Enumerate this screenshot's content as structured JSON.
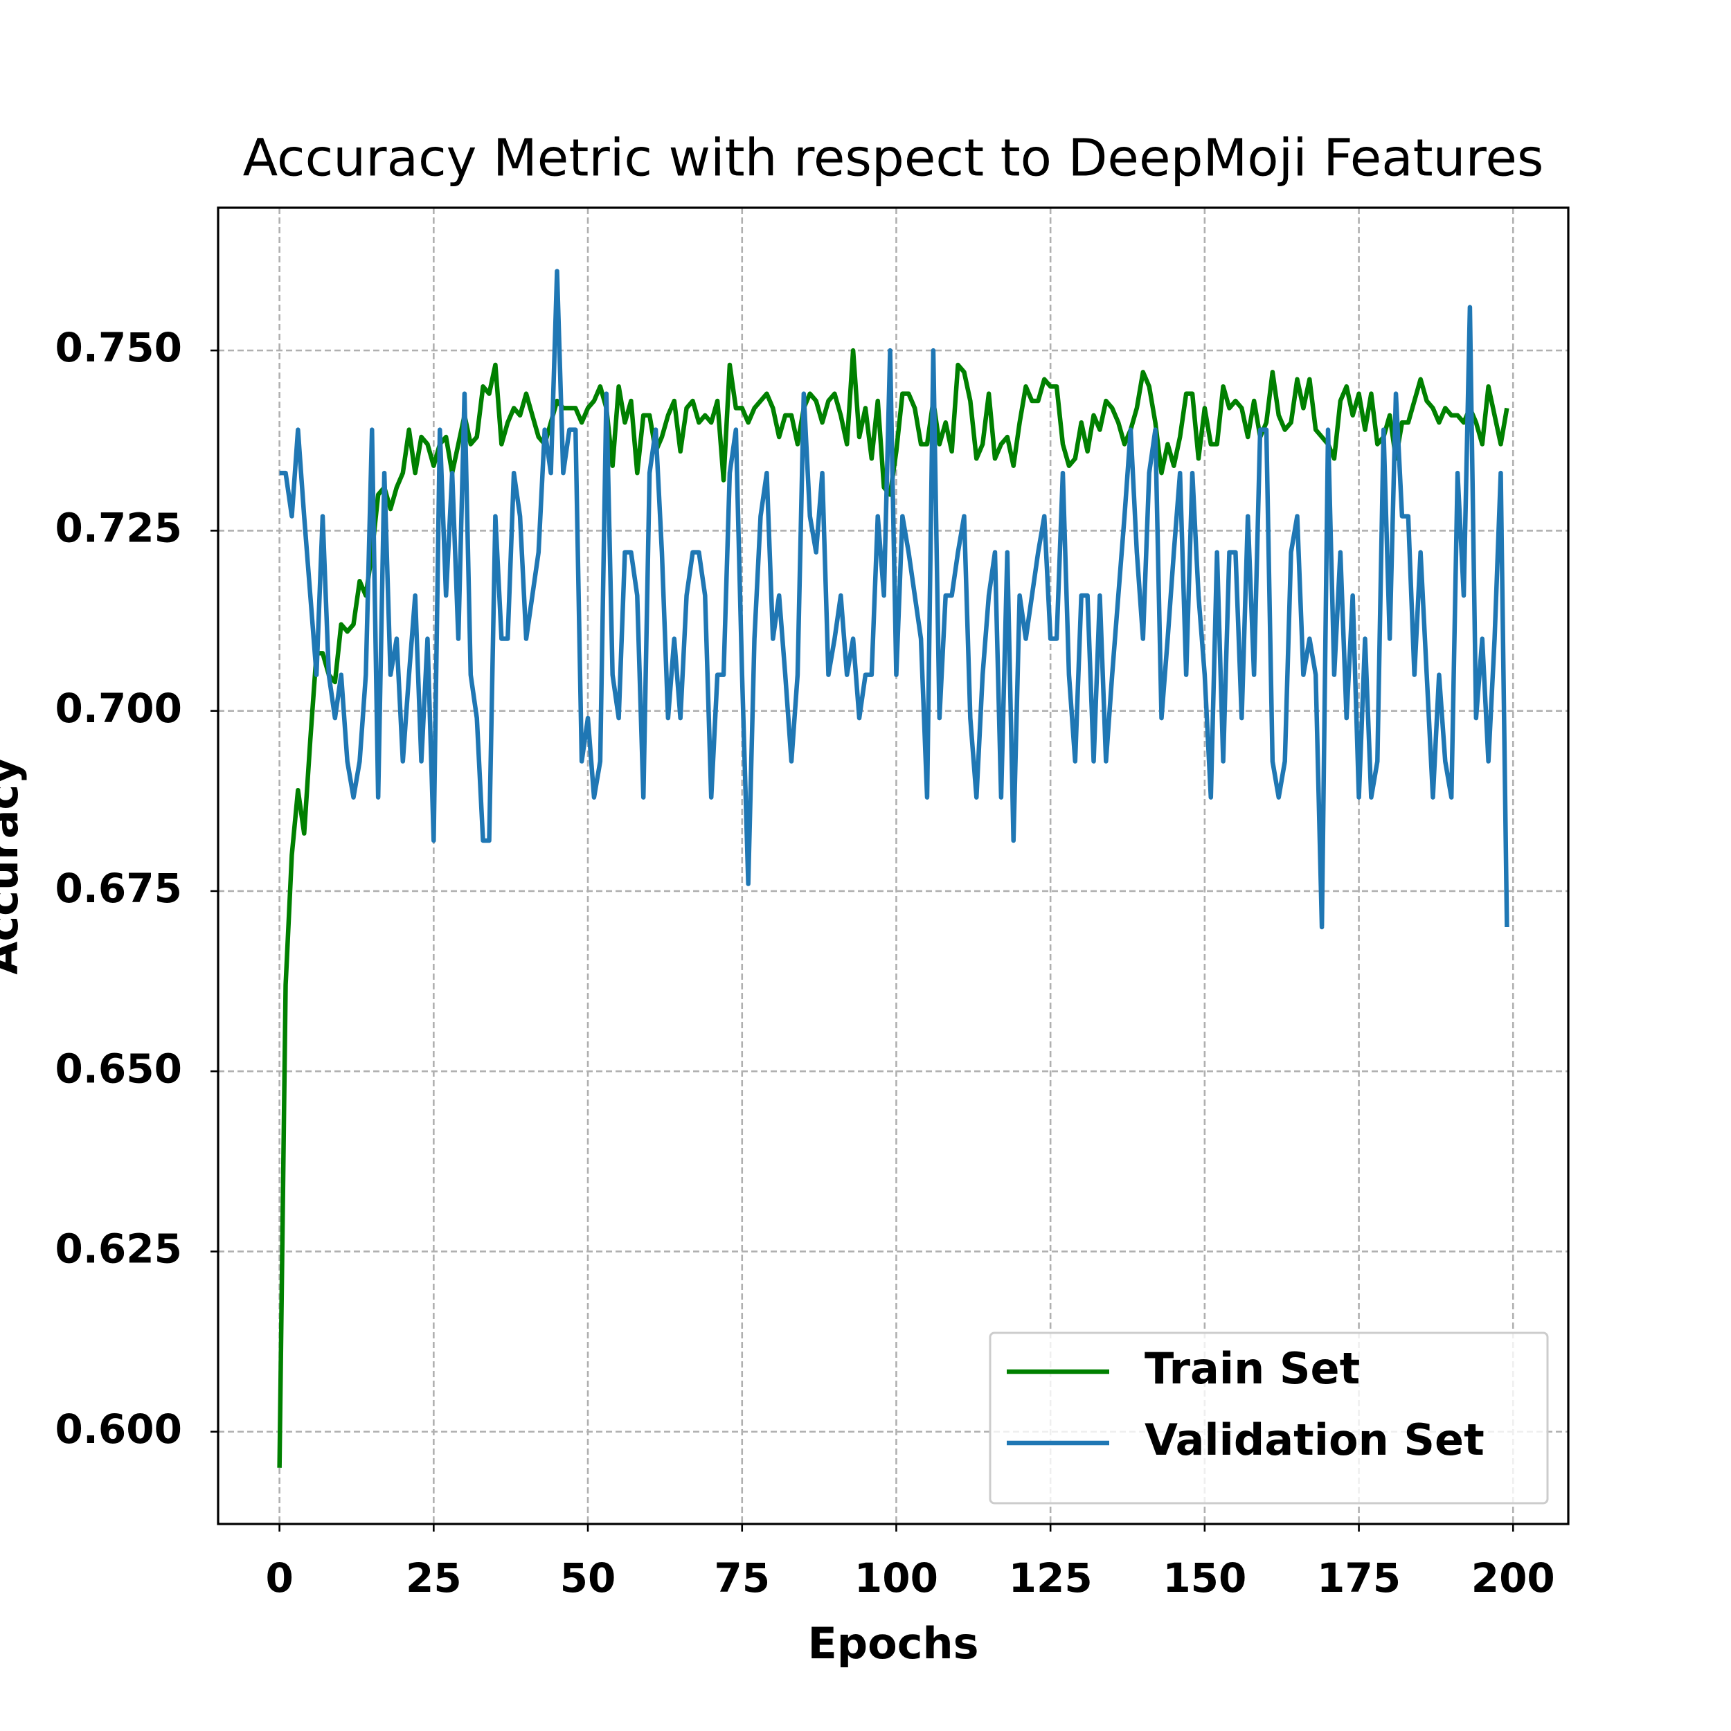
{
  "chart_data": {
    "type": "line",
    "title": "Accuracy Metric with respect to DeepMoji Features",
    "x_label": "Epochs",
    "y_label": "Accuracy",
    "x": [
      0,
      1,
      2,
      3,
      4,
      5,
      6,
      7,
      8,
      9,
      10,
      11,
      12,
      13,
      14,
      15,
      16,
      17,
      18,
      19,
      20,
      21,
      22,
      23,
      24,
      25,
      26,
      27,
      28,
      29,
      30,
      31,
      32,
      33,
      34,
      35,
      36,
      37,
      38,
      39,
      40,
      41,
      42,
      43,
      44,
      45,
      46,
      47,
      48,
      49,
      50,
      51,
      52,
      53,
      54,
      55,
      56,
      57,
      58,
      59,
      60,
      61,
      62,
      63,
      64,
      65,
      66,
      67,
      68,
      69,
      70,
      71,
      72,
      73,
      74,
      75,
      76,
      77,
      78,
      79,
      80,
      81,
      82,
      83,
      84,
      85,
      86,
      87,
      88,
      89,
      90,
      91,
      92,
      93,
      94,
      95,
      96,
      97,
      98,
      99,
      100,
      101,
      102,
      103,
      104,
      105,
      106,
      107,
      108,
      109,
      110,
      111,
      112,
      113,
      114,
      115,
      116,
      117,
      118,
      119,
      120,
      121,
      122,
      123,
      124,
      125,
      126,
      127,
      128,
      129,
      130,
      131,
      132,
      133,
      134,
      135,
      136,
      137,
      138,
      139,
      140,
      141,
      142,
      143,
      144,
      145,
      146,
      147,
      148,
      149,
      150,
      151,
      152,
      153,
      154,
      155,
      156,
      157,
      158,
      159,
      160,
      161,
      162,
      163,
      164,
      165,
      166,
      167,
      168,
      169,
      170,
      171,
      172,
      173,
      174,
      175,
      176,
      177,
      178,
      179,
      180,
      181,
      182,
      183,
      184,
      185,
      186,
      187,
      188,
      189,
      190,
      191,
      192,
      193,
      194,
      195,
      196,
      197,
      198,
      199
    ],
    "series": [
      {
        "name": "Train Set",
        "color": "#008000",
        "values": [
          0.595,
          0.662,
          0.68,
          0.689,
          0.683,
          0.696,
          0.708,
          0.708,
          0.705,
          0.704,
          0.712,
          0.711,
          0.712,
          0.718,
          0.716,
          0.722,
          0.73,
          0.731,
          0.728,
          0.731,
          0.733,
          0.739,
          0.733,
          0.738,
          0.737,
          0.734,
          0.737,
          0.738,
          0.733,
          0.737,
          0.741,
          0.737,
          0.738,
          0.745,
          0.744,
          0.748,
          0.737,
          0.74,
          0.742,
          0.741,
          0.744,
          0.741,
          0.738,
          0.737,
          0.74,
          0.743,
          0.742,
          0.742,
          0.742,
          0.74,
          0.742,
          0.743,
          0.745,
          0.742,
          0.734,
          0.745,
          0.74,
          0.743,
          0.733,
          0.741,
          0.741,
          0.736,
          0.738,
          0.741,
          0.743,
          0.736,
          0.742,
          0.743,
          0.74,
          0.741,
          0.74,
          0.743,
          0.732,
          0.748,
          0.742,
          0.742,
          0.74,
          0.742,
          0.743,
          0.744,
          0.742,
          0.738,
          0.741,
          0.741,
          0.737,
          0.742,
          0.744,
          0.743,
          0.74,
          0.743,
          0.744,
          0.741,
          0.737,
          0.75,
          0.738,
          0.742,
          0.735,
          0.743,
          0.731,
          0.73,
          0.736,
          0.744,
          0.744,
          0.742,
          0.737,
          0.737,
          0.743,
          0.737,
          0.74,
          0.736,
          0.748,
          0.747,
          0.743,
          0.735,
          0.737,
          0.744,
          0.735,
          0.737,
          0.738,
          0.734,
          0.74,
          0.745,
          0.743,
          0.743,
          0.746,
          0.745,
          0.745,
          0.737,
          0.734,
          0.735,
          0.74,
          0.736,
          0.741,
          0.739,
          0.743,
          0.742,
          0.74,
          0.737,
          0.739,
          0.742,
          0.747,
          0.745,
          0.74,
          0.733,
          0.737,
          0.734,
          0.738,
          0.744,
          0.744,
          0.735,
          0.742,
          0.737,
          0.737,
          0.745,
          0.742,
          0.743,
          0.742,
          0.738,
          0.743,
          0.738,
          0.74,
          0.747,
          0.741,
          0.739,
          0.74,
          0.746,
          0.742,
          0.746,
          0.739,
          0.738,
          0.737,
          0.735,
          0.743,
          0.745,
          0.741,
          0.744,
          0.739,
          0.744,
          0.737,
          0.738,
          0.741,
          0.735,
          0.74,
          0.74,
          0.743,
          0.746,
          0.743,
          0.742,
          0.74,
          0.742,
          0.741,
          0.741,
          0.74,
          0.742,
          0.74,
          0.737,
          0.745,
          0.741,
          0.737,
          0.742
        ]
      },
      {
        "name": "Validation Set",
        "color": "#1f77b4",
        "values": [
          0.733,
          0.733,
          0.727,
          0.739,
          0.727,
          0.716,
          0.705,
          0.727,
          0.705,
          0.699,
          0.705,
          0.693,
          0.688,
          0.693,
          0.705,
          0.739,
          0.688,
          0.733,
          0.705,
          0.71,
          0.693,
          0.705,
          0.716,
          0.693,
          0.71,
          0.682,
          0.739,
          0.716,
          0.733,
          0.71,
          0.744,
          0.705,
          0.699,
          0.682,
          0.682,
          0.727,
          0.71,
          0.71,
          0.733,
          0.727,
          0.71,
          0.716,
          0.722,
          0.739,
          0.733,
          0.761,
          0.733,
          0.739,
          0.739,
          0.693,
          0.699,
          0.688,
          0.693,
          0.744,
          0.705,
          0.699,
          0.722,
          0.722,
          0.716,
          0.688,
          0.733,
          0.739,
          0.722,
          0.699,
          0.71,
          0.699,
          0.716,
          0.722,
          0.722,
          0.716,
          0.688,
          0.705,
          0.705,
          0.733,
          0.739,
          0.705,
          0.676,
          0.71,
          0.727,
          0.733,
          0.71,
          0.716,
          0.705,
          0.693,
          0.705,
          0.744,
          0.727,
          0.722,
          0.733,
          0.705,
          0.71,
          0.716,
          0.705,
          0.71,
          0.699,
          0.705,
          0.705,
          0.727,
          0.716,
          0.75,
          0.705,
          0.727,
          0.722,
          0.716,
          0.71,
          0.688,
          0.75,
          0.699,
          0.716,
          0.716,
          0.722,
          0.727,
          0.699,
          0.688,
          0.705,
          0.716,
          0.722,
          0.688,
          0.722,
          0.682,
          0.716,
          0.71,
          0.716,
          0.722,
          0.727,
          0.71,
          0.71,
          0.733,
          0.705,
          0.693,
          0.716,
          0.716,
          0.693,
          0.716,
          0.693,
          0.705,
          0.716,
          0.727,
          0.739,
          0.722,
          0.71,
          0.733,
          0.739,
          0.699,
          0.71,
          0.722,
          0.733,
          0.705,
          0.733,
          0.716,
          0.705,
          0.688,
          0.722,
          0.693,
          0.722,
          0.722,
          0.699,
          0.727,
          0.705,
          0.739,
          0.739,
          0.693,
          0.688,
          0.693,
          0.722,
          0.727,
          0.705,
          0.71,
          0.705,
          0.67,
          0.739,
          0.705,
          0.722,
          0.699,
          0.716,
          0.688,
          0.71,
          0.688,
          0.693,
          0.739,
          0.71,
          0.744,
          0.727,
          0.727,
          0.705,
          0.722,
          0.705,
          0.688,
          0.705,
          0.693,
          0.688,
          0.733,
          0.716,
          0.756,
          0.699,
          0.71,
          0.693,
          0.71,
          0.733,
          0.67
        ]
      }
    ],
    "xlim": [
      -9.95,
      208.95
    ],
    "ylim": [
      0.5872,
      0.7698
    ],
    "xticks": [
      0,
      25,
      50,
      75,
      100,
      125,
      150,
      175,
      200
    ],
    "yticks": [
      {
        "value": 0.6,
        "label": "0.600"
      },
      {
        "value": 0.625,
        "label": "0.625"
      },
      {
        "value": 0.65,
        "label": "0.650"
      },
      {
        "value": 0.675,
        "label": "0.675"
      },
      {
        "value": 0.7,
        "label": "0.700"
      },
      {
        "value": 0.725,
        "label": "0.725"
      },
      {
        "value": 0.75,
        "label": "0.750"
      }
    ],
    "grid": true,
    "legend": "lower right"
  }
}
